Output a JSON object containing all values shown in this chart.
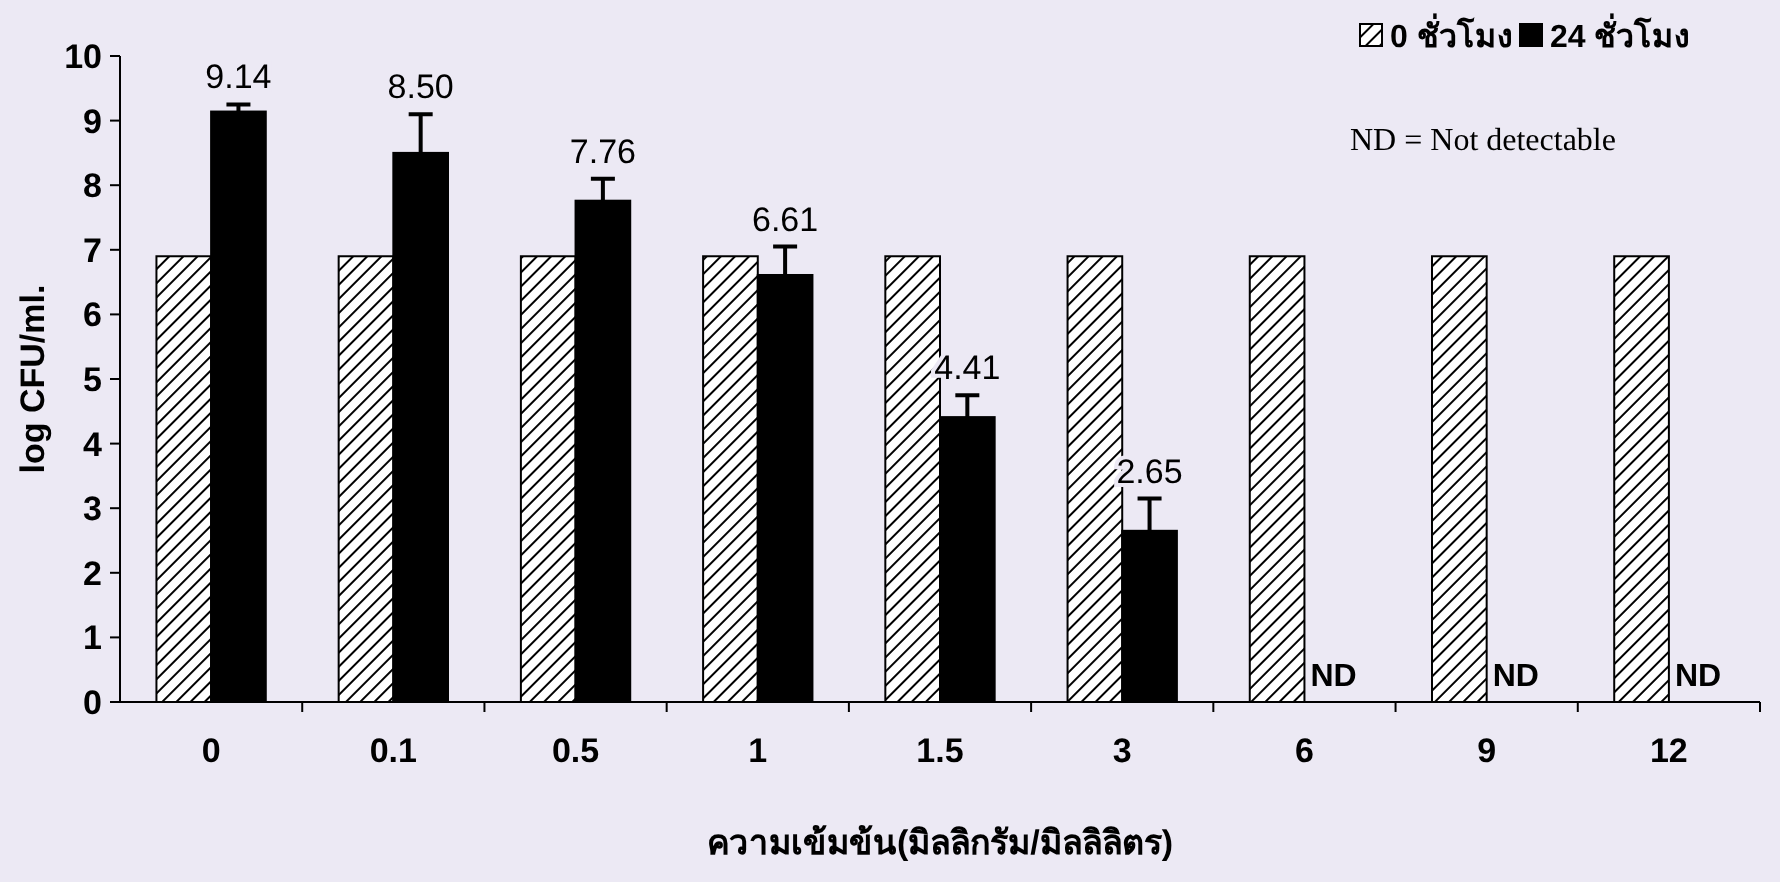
{
  "chart_data": {
    "type": "bar",
    "xlabel": "ความเข้มข้น(มิลลิกรัม/มิลลิลิตร)",
    "ylabel": "log CFU/ml.",
    "categories": [
      "0",
      "0.1",
      "0.5",
      "1",
      "1.5",
      "3",
      "6",
      "9",
      "12"
    ],
    "series": [
      {
        "name": "0 ชั่วโมง",
        "color": "#000000",
        "values": [
          6.9,
          6.9,
          6.9,
          6.9,
          6.9,
          6.9,
          6.9,
          6.9,
          6.9
        ]
      },
      {
        "name": "24  ชั่วโมง",
        "color": "#000000",
        "values": [
          9.14,
          8.5,
          7.76,
          6.61,
          4.41,
          2.65,
          null,
          null,
          null
        ],
        "errors": [
          [
            9.14,
            9.25
          ],
          [
            8.5,
            9.1
          ],
          [
            7.76,
            8.1
          ],
          [
            6.61,
            7.05
          ],
          [
            4.41,
            4.75
          ],
          [
            2.65,
            3.15
          ],
          null,
          null,
          null
        ],
        "value_labels": [
          "9.14",
          "8.50",
          "7.76",
          "6.61",
          "4.41",
          "2.65",
          "ND",
          "ND",
          "ND"
        ]
      }
    ],
    "ylim": [
      0,
      10
    ],
    "yticks": [
      0,
      1,
      2,
      3,
      4,
      5,
      6,
      7,
      8,
      9,
      10
    ],
    "grid": false,
    "legend": "top right",
    "annotations": [
      "ND = Not detectable"
    ]
  }
}
